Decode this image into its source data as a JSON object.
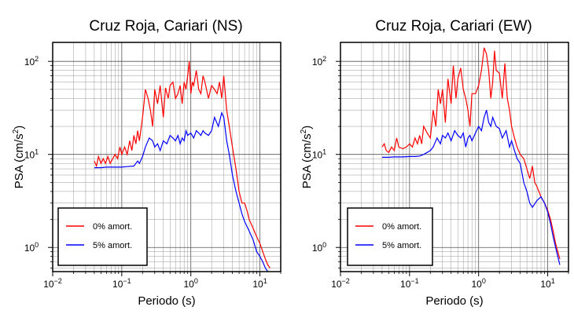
{
  "chart_data": [
    {
      "type": "line",
      "title": "Cruz Roja, Cariari (NS)",
      "xlabel": "Periodo (s)",
      "ylabel": "PSA (cm/s",
      "ylabel_sup": "2",
      "ylabel_close": ")",
      "x_scale": "log",
      "y_scale": "log",
      "xlim": [
        0.01,
        20
      ],
      "ylim": [
        0.55,
        160
      ],
      "x_ticks": [
        {
          "value": 0.01,
          "base": "10",
          "exp": "−2"
        },
        {
          "value": 0.1,
          "base": "10",
          "exp": "−1"
        },
        {
          "value": 1,
          "base": "10",
          "exp": "0"
        },
        {
          "value": 10,
          "base": "10",
          "exp": "1"
        }
      ],
      "y_ticks": [
        {
          "value": 1,
          "base": "10",
          "exp": "0"
        },
        {
          "value": 10,
          "base": "10",
          "exp": "1"
        },
        {
          "value": 100,
          "base": "10",
          "exp": "2"
        }
      ],
      "grid": true,
      "legend_position": "bottom-left",
      "series": [
        {
          "name": "0% amort.",
          "color": "#ff0000",
          "x": [
            0.04,
            0.043,
            0.046,
            0.05,
            0.054,
            0.058,
            0.063,
            0.068,
            0.074,
            0.08,
            0.087,
            0.094,
            0.1,
            0.11,
            0.12,
            0.13,
            0.14,
            0.15,
            0.16,
            0.17,
            0.18,
            0.2,
            0.22,
            0.24,
            0.26,
            0.28,
            0.3,
            0.33,
            0.36,
            0.4,
            0.43,
            0.47,
            0.5,
            0.55,
            0.6,
            0.65,
            0.7,
            0.75,
            0.8,
            0.85,
            0.9,
            0.95,
            1.0,
            1.05,
            1.1,
            1.2,
            1.3,
            1.4,
            1.5,
            1.6,
            1.8,
            2.0,
            2.2,
            2.4,
            2.6,
            2.8,
            3.0,
            3.3,
            3.6,
            4.0,
            4.5,
            5.0,
            5.5,
            6.0,
            6.5,
            7.0,
            8.0,
            9.0,
            10,
            11,
            12,
            13,
            14
          ],
          "y": [
            8.5,
            7.5,
            9.5,
            8.0,
            9.0,
            8.0,
            9.5,
            8.0,
            9.0,
            10,
            9.0,
            12,
            10,
            12,
            10,
            14,
            11,
            16,
            13,
            18,
            14,
            25,
            50,
            40,
            30,
            20,
            50,
            35,
            55,
            25,
            52,
            40,
            55,
            60,
            40,
            45,
            55,
            35,
            60,
            50,
            70,
            100,
            45,
            60,
            55,
            80,
            50,
            45,
            70,
            60,
            40,
            55,
            50,
            45,
            60,
            40,
            70,
            30,
            20,
            12,
            7,
            4,
            3,
            3,
            2.5,
            2.0,
            1.6,
            1.3,
            1.1,
            0.9,
            0.75,
            0.65,
            0.6
          ]
        },
        {
          "name": "5% amort.",
          "color": "#0000ff",
          "x": [
            0.04,
            0.05,
            0.06,
            0.08,
            0.1,
            0.12,
            0.15,
            0.16,
            0.17,
            0.18,
            0.2,
            0.22,
            0.25,
            0.28,
            0.3,
            0.33,
            0.36,
            0.4,
            0.45,
            0.5,
            0.55,
            0.6,
            0.65,
            0.7,
            0.75,
            0.8,
            0.85,
            0.9,
            1.0,
            1.1,
            1.2,
            1.3,
            1.4,
            1.5,
            1.6,
            1.8,
            2.0,
            2.2,
            2.5,
            2.8,
            3.0,
            3.3,
            3.6,
            4.0,
            4.5,
            5.0,
            5.5,
            6.0,
            7.0,
            8.0,
            9.0,
            10,
            11,
            12,
            13
          ],
          "y": [
            7.2,
            7.2,
            7.3,
            7.3,
            7.3,
            7.4,
            7.5,
            8.0,
            8.5,
            8.0,
            9.5,
            12,
            15,
            14,
            12,
            13,
            11,
            14,
            13,
            16,
            15,
            14,
            16,
            13,
            15,
            14,
            18,
            16,
            17,
            15,
            18,
            17,
            16,
            18,
            17,
            16,
            18,
            25,
            20,
            28,
            25,
            14,
            10,
            6,
            4,
            3,
            2.3,
            1.9,
            1.5,
            1.2,
            0.9,
            0.8,
            0.7,
            0.6,
            0.55
          ]
        }
      ]
    },
    {
      "type": "line",
      "title": "Cruz Roja, Cariari (EW)",
      "xlabel": "Periodo (s)",
      "ylabel": "PSA (cm/s",
      "ylabel_sup": "2",
      "ylabel_close": ")",
      "x_scale": "log",
      "y_scale": "log",
      "xlim": [
        0.01,
        20
      ],
      "ylim": [
        0.55,
        160
      ],
      "x_ticks": [
        {
          "value": 0.01,
          "base": "10",
          "exp": "−2"
        },
        {
          "value": 0.1,
          "base": "10",
          "exp": "−1"
        },
        {
          "value": 1,
          "base": "10",
          "exp": "0"
        },
        {
          "value": 10,
          "base": "10",
          "exp": "1"
        }
      ],
      "y_ticks": [
        {
          "value": 1,
          "base": "10",
          "exp": "0"
        },
        {
          "value": 10,
          "base": "10",
          "exp": "1"
        },
        {
          "value": 100,
          "base": "10",
          "exp": "2"
        }
      ],
      "grid": true,
      "legend_position": "bottom-left",
      "series": [
        {
          "name": "0% amort.",
          "color": "#ff0000",
          "x": [
            0.04,
            0.043,
            0.046,
            0.05,
            0.055,
            0.06,
            0.065,
            0.07,
            0.08,
            0.09,
            0.1,
            0.11,
            0.12,
            0.13,
            0.14,
            0.15,
            0.16,
            0.18,
            0.2,
            0.22,
            0.24,
            0.26,
            0.28,
            0.3,
            0.33,
            0.36,
            0.4,
            0.43,
            0.47,
            0.5,
            0.55,
            0.6,
            0.65,
            0.7,
            0.75,
            0.8,
            0.9,
            1.0,
            1.1,
            1.2,
            1.3,
            1.4,
            1.5,
            1.6,
            1.7,
            1.8,
            2.0,
            2.2,
            2.4,
            2.6,
            2.8,
            3.0,
            3.3,
            3.6,
            4.0,
            4.5,
            5.0,
            5.5,
            6.0,
            6.5,
            7.0,
            8.0,
            9.0,
            10,
            11,
            12,
            13,
            14,
            15
          ],
          "y": [
            12,
            13,
            11,
            10.5,
            12,
            11,
            15,
            12,
            11.5,
            12,
            13,
            12,
            15,
            13,
            16,
            13,
            20,
            17,
            15,
            30,
            20,
            50,
            35,
            50,
            22,
            65,
            35,
            90,
            40,
            65,
            85,
            50,
            40,
            30,
            20,
            45,
            45,
            55,
            80,
            140,
            120,
            80,
            40,
            60,
            130,
            80,
            75,
            40,
            95,
            40,
            30,
            20,
            15,
            12,
            10,
            9,
            7,
            5.5,
            7.5,
            5,
            4.5,
            3.5,
            3.0,
            2.5,
            2.0,
            1.5,
            1.1,
            0.9,
            0.75
          ]
        },
        {
          "name": "5% amort.",
          "color": "#0000ff",
          "x": [
            0.04,
            0.05,
            0.06,
            0.08,
            0.1,
            0.12,
            0.14,
            0.16,
            0.18,
            0.2,
            0.22,
            0.25,
            0.28,
            0.3,
            0.33,
            0.36,
            0.4,
            0.45,
            0.5,
            0.55,
            0.6,
            0.65,
            0.7,
            0.75,
            0.8,
            0.9,
            1.0,
            1.1,
            1.2,
            1.3,
            1.4,
            1.5,
            1.6,
            1.8,
            2.0,
            2.2,
            2.5,
            2.8,
            3.0,
            3.3,
            3.6,
            4.0,
            4.5,
            5.0,
            5.5,
            6.0,
            7.0,
            8.0,
            9.0,
            10,
            11,
            12,
            13,
            14,
            15
          ],
          "y": [
            9.3,
            9.3,
            9.4,
            9.4,
            9.5,
            9.5,
            9.6,
            10,
            10.5,
            11,
            12,
            15,
            13,
            16,
            15,
            17,
            14,
            18,
            16,
            15,
            17,
            12,
            15,
            16,
            14,
            17,
            20,
            18,
            25,
            30,
            22,
            20,
            25,
            20,
            19,
            15,
            18,
            12,
            14,
            11,
            9,
            8,
            5,
            4,
            3,
            2.7,
            3.2,
            3.5,
            3.0,
            2.4,
            1.8,
            1.3,
            1.0,
            0.8,
            0.65
          ]
        }
      ]
    }
  ]
}
